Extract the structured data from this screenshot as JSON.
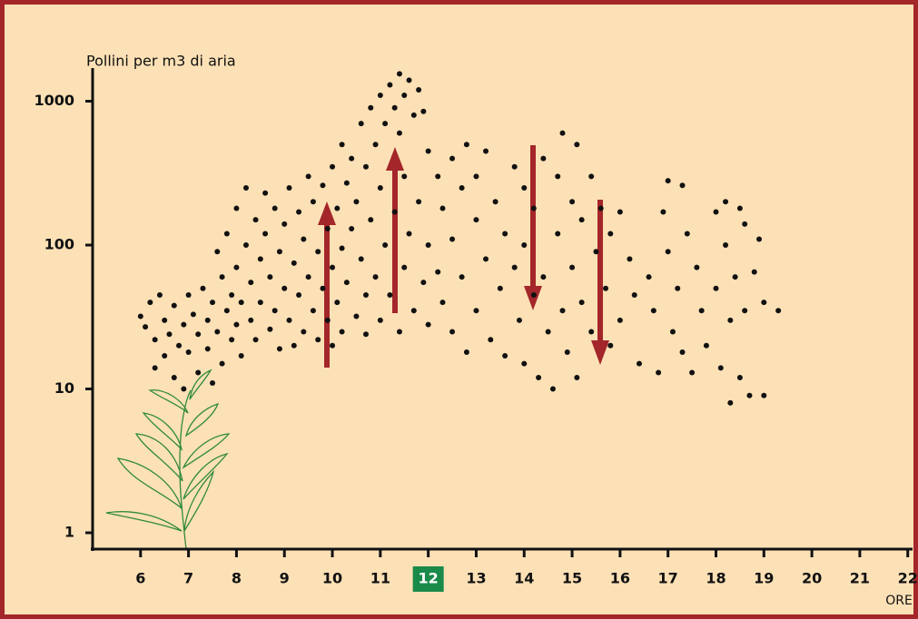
{
  "chart_data": {
    "type": "scatter",
    "y_label": "Pollini per m3 di aria",
    "x_label": "ORE",
    "yscale": "log",
    "color": "#111111",
    "xlim": [
      5,
      22.1
    ],
    "xticks": [
      6,
      7,
      8,
      9,
      10,
      11,
      12,
      13,
      14,
      15,
      16,
      17,
      18,
      19,
      20,
      21,
      22
    ],
    "highlighted_xtick": 12,
    "ylim": [
      0.77,
      1700
    ],
    "yticks": [
      1,
      10,
      100,
      1000
    ],
    "x": [
      6.0,
      6.1,
      6.2,
      6.3,
      6.3,
      6.4,
      6.5,
      6.5,
      6.6,
      6.7,
      6.7,
      6.8,
      6.9,
      6.9,
      7.0,
      7.0,
      7.1,
      7.2,
      7.2,
      7.3,
      7.4,
      7.4,
      7.5,
      7.5,
      7.6,
      7.6,
      7.7,
      7.7,
      7.8,
      7.8,
      7.9,
      7.9,
      8.0,
      8.0,
      8.0,
      8.1,
      8.1,
      8.2,
      8.2,
      8.3,
      8.3,
      8.4,
      8.4,
      8.5,
      8.5,
      8.6,
      8.6,
      8.7,
      8.7,
      8.8,
      8.8,
      8.9,
      8.9,
      9.0,
      9.0,
      9.1,
      9.1,
      9.2,
      9.2,
      9.3,
      9.3,
      9.4,
      9.4,
      9.5,
      9.5,
      9.6,
      9.6,
      9.7,
      9.7,
      9.8,
      9.8,
      9.9,
      9.9,
      10.0,
      10.0,
      10.0,
      10.1,
      10.1,
      10.2,
      10.2,
      10.2,
      10.3,
      10.3,
      10.4,
      10.4,
      10.5,
      10.5,
      10.6,
      10.6,
      10.7,
      10.7,
      10.7,
      10.8,
      10.8,
      10.9,
      10.9,
      11.0,
      11.0,
      11.0,
      11.1,
      11.1,
      11.2,
      11.2,
      11.3,
      11.3,
      11.4,
      11.4,
      11.4,
      11.5,
      11.5,
      11.5,
      11.6,
      11.6,
      11.7,
      11.7,
      11.8,
      11.8,
      11.9,
      11.9,
      12.0,
      12.0,
      12.0,
      12.2,
      12.2,
      12.3,
      12.3,
      12.5,
      12.5,
      12.5,
      12.7,
      12.7,
      12.8,
      12.8,
      13.0,
      13.0,
      13.0,
      13.2,
      13.2,
      13.3,
      13.4,
      13.5,
      13.6,
      13.6,
      13.8,
      13.8,
      13.9,
      14.0,
      14.0,
      14.0,
      14.2,
      14.2,
      14.3,
      14.4,
      14.4,
      14.5,
      14.6,
      14.7,
      14.7,
      14.8,
      14.8,
      14.9,
      15.0,
      15.0,
      15.1,
      15.1,
      15.2,
      15.2,
      15.4,
      15.4,
      15.5,
      15.6,
      15.7,
      15.8,
      15.8,
      16.0,
      16.0,
      16.2,
      16.3,
      16.4,
      16.6,
      16.7,
      16.8,
      16.9,
      17.0,
      17.0,
      17.1,
      17.2,
      17.3,
      17.3,
      17.4,
      17.5,
      17.6,
      17.7,
      17.8,
      18.0,
      18.0,
      18.1,
      18.2,
      18.2,
      18.3,
      18.3,
      18.4,
      18.5,
      18.5,
      18.6,
      18.6,
      18.7,
      18.8,
      18.9,
      19.0,
      19.0,
      19.3
    ],
    "values": [
      32,
      27,
      40,
      22,
      14,
      45,
      30,
      17,
      24,
      12,
      38,
      20,
      28,
      10,
      45,
      18,
      33,
      24,
      13,
      50,
      30,
      19,
      40,
      11,
      90,
      25,
      60,
      15,
      120,
      35,
      45,
      22,
      180,
      70,
      28,
      40,
      17,
      250,
      100,
      55,
      30,
      150,
      22,
      80,
      40,
      230,
      120,
      60,
      26,
      180,
      35,
      90,
      19,
      140,
      50,
      250,
      30,
      75,
      20,
      170,
      45,
      110,
      25,
      300,
      60,
      200,
      35,
      90,
      22,
      260,
      50,
      130,
      30,
      350,
      70,
      20,
      180,
      40,
      500,
      95,
      25,
      270,
      55,
      400,
      130,
      32,
      200,
      700,
      80,
      350,
      45,
      24,
      900,
      150,
      500,
      60,
      1100,
      250,
      30,
      700,
      100,
      1300,
      45,
      900,
      170,
      1550,
      600,
      25,
      1100,
      300,
      70,
      1400,
      120,
      800,
      35,
      1200,
      200,
      850,
      55,
      450,
      100,
      28,
      300,
      65,
      180,
      40,
      400,
      110,
      25,
      250,
      60,
      500,
      18,
      300,
      150,
      35,
      450,
      80,
      22,
      200,
      50,
      120,
      17,
      350,
      70,
      30,
      250,
      100,
      15,
      180,
      45,
      12,
      400,
      60,
      25,
      10,
      300,
      120,
      600,
      35,
      18,
      200,
      70,
      500,
      12,
      150,
      40,
      300,
      25,
      90,
      180,
      50,
      120,
      20,
      170,
      30,
      80,
      45,
      15,
      60,
      35,
      13,
      170,
      280,
      90,
      25,
      50,
      260,
      18,
      120,
      13,
      70,
      35,
      20,
      170,
      50,
      14,
      200,
      100,
      30,
      8,
      60,
      180,
      12,
      140,
      35,
      9,
      65,
      110,
      40,
      9,
      35
    ]
  }
}
